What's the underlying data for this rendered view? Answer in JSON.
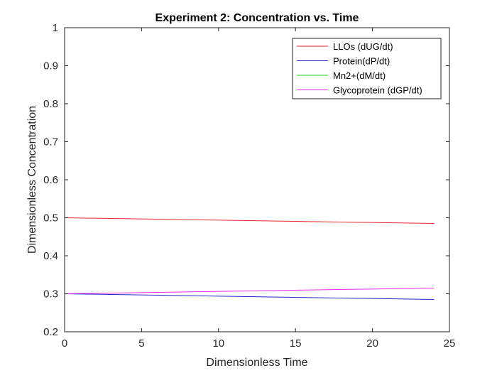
{
  "chart_data": {
    "type": "line",
    "title": "Experiment 2: Concentration vs. Time",
    "xlabel": "Dimensionless Time",
    "ylabel": "Dimensionless Concentration",
    "xlim": [
      0,
      25
    ],
    "ylim": [
      0.2,
      1
    ],
    "xticks": [
      0,
      5,
      10,
      15,
      20,
      25
    ],
    "yticks": [
      0.2,
      0.3,
      0.4,
      0.5,
      0.6,
      0.7,
      0.8,
      0.9,
      1
    ],
    "grid": false,
    "legend_position": "top-right",
    "series": [
      {
        "name": "LLOs (dUG/dt)",
        "color": "#e8262a",
        "x": [
          0,
          24
        ],
        "y": [
          0.5,
          0.485
        ]
      },
      {
        "name": "Protein(dP/dt)",
        "color": "#2424c8",
        "x": [
          0,
          24
        ],
        "y": [
          0.3,
          0.285
        ]
      },
      {
        "name": "Mn2+(dM/dt)",
        "color": "#22cc22",
        "x": [
          0,
          24
        ],
        "y": [
          1.0,
          1.0
        ]
      },
      {
        "name": "Glycoprotein (dGP/dt)",
        "color": "#e82ae8",
        "x": [
          0,
          24
        ],
        "y": [
          0.3,
          0.315
        ]
      }
    ]
  }
}
